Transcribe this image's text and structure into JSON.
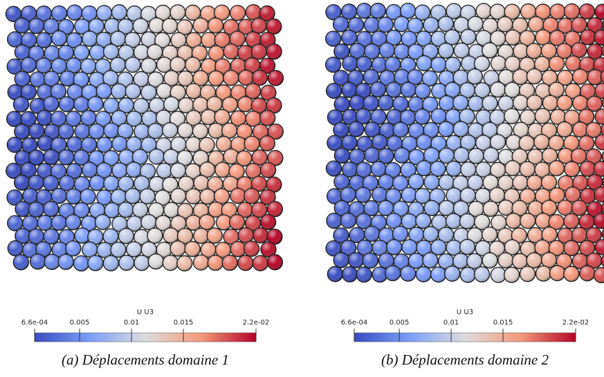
{
  "panels": [
    {
      "colorbar": {
        "title": "U U3",
        "range": [
          0.00066,
          0.022
        ],
        "ticks": [
          {
            "value": 0.00066,
            "label": "6.6e-04"
          },
          0.005,
          0.01,
          0.015,
          {
            "value": 0.022,
            "label": "2.2e-02"
          }
        ]
      },
      "caption": "(a) Déplacements domaine 1"
    },
    {
      "colorbar": {
        "title": "U U3",
        "range": [
          0.00066,
          0.022
        ],
        "ticks": [
          {
            "value": 0.00066,
            "label": "6.6e-04"
          },
          0.005,
          0.01,
          0.015,
          {
            "value": 0.022,
            "label": "2.2e-02"
          }
        ]
      },
      "caption": "(b) Déplacements domaine 2"
    }
  ]
}
